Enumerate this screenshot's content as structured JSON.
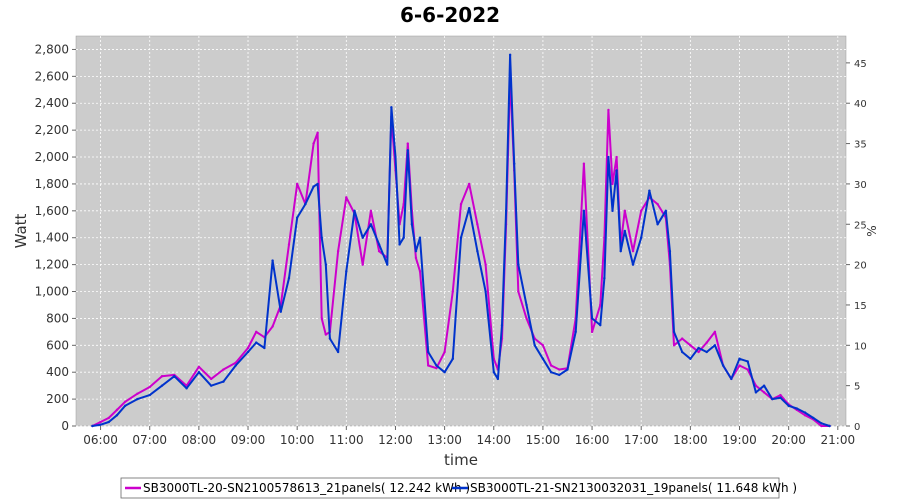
{
  "chart_data": {
    "type": "line",
    "title": "6-6-2022",
    "xlabel": "time",
    "ylabel": "Watt",
    "y2label": "%",
    "ylim": [
      0,
      2900
    ],
    "y2lim": [
      0,
      48.33
    ],
    "xlim": [
      "05:30",
      "21:10"
    ],
    "x_ticks": [
      "06:00",
      "07:00",
      "08:00",
      "09:00",
      "10:00",
      "11:00",
      "12:00",
      "13:00",
      "14:00",
      "15:00",
      "16:00",
      "17:00",
      "18:00",
      "19:00",
      "20:00",
      "21:00"
    ],
    "y_ticks": [
      "0",
      "200",
      "400",
      "600",
      "800",
      "1,000",
      "1,200",
      "1,400",
      "1,600",
      "1,800",
      "2,000",
      "2,200",
      "2,400",
      "2,600",
      "2,800"
    ],
    "y2_ticks": [
      "0",
      "5",
      "10",
      "15",
      "20",
      "25",
      "30",
      "35",
      "40",
      "45"
    ],
    "grid": true,
    "legend_position": "bottom",
    "series": [
      {
        "name": "SB3000TL-20-SN2100578613_21panels( 12.242 kWh )",
        "color": "#cc00cc",
        "x": [
          "05:50",
          "06:00",
          "06:10",
          "06:20",
          "06:30",
          "06:45",
          "07:00",
          "07:15",
          "07:30",
          "07:45",
          "08:00",
          "08:15",
          "08:30",
          "08:45",
          "09:00",
          "09:10",
          "09:20",
          "09:30",
          "09:40",
          "09:50",
          "10:00",
          "10:10",
          "10:20",
          "10:25",
          "10:30",
          "10:35",
          "10:40",
          "10:50",
          "11:00",
          "11:10",
          "11:20",
          "11:30",
          "11:40",
          "11:50",
          "11:55",
          "12:00",
          "12:05",
          "12:10",
          "12:15",
          "12:20",
          "12:25",
          "12:30",
          "12:40",
          "12:50",
          "13:00",
          "13:10",
          "13:20",
          "13:30",
          "13:40",
          "13:50",
          "14:00",
          "14:05",
          "14:10",
          "14:15",
          "14:20",
          "14:25",
          "14:30",
          "14:40",
          "14:50",
          "15:00",
          "15:10",
          "15:20",
          "15:30",
          "15:40",
          "15:50",
          "16:00",
          "16:10",
          "16:15",
          "16:20",
          "16:25",
          "16:30",
          "16:35",
          "16:40",
          "16:50",
          "17:00",
          "17:10",
          "17:20",
          "17:30",
          "17:35",
          "17:40",
          "17:50",
          "18:00",
          "18:10",
          "18:20",
          "18:30",
          "18:40",
          "18:50",
          "19:00",
          "19:10",
          "19:20",
          "19:30",
          "19:40",
          "19:50",
          "20:00",
          "20:10",
          "20:20",
          "20:30",
          "20:40",
          "20:50"
        ],
        "values": [
          0,
          30,
          60,
          120,
          180,
          240,
          290,
          370,
          380,
          300,
          440,
          350,
          420,
          470,
          580,
          700,
          660,
          740,
          900,
          1350,
          1800,
          1650,
          2100,
          2180,
          800,
          680,
          700,
          1300,
          1700,
          1580,
          1200,
          1600,
          1300,
          1250,
          2300,
          1900,
          1500,
          1650,
          2100,
          1600,
          1250,
          1150,
          450,
          430,
          550,
          1000,
          1650,
          1800,
          1500,
          1200,
          500,
          420,
          650,
          1500,
          2600,
          1900,
          1000,
          800,
          650,
          600,
          450,
          420,
          430,
          800,
          1950,
          700,
          900,
          1400,
          2350,
          1800,
          2000,
          1350,
          1600,
          1300,
          1600,
          1700,
          1650,
          1550,
          1200,
          600,
          650,
          600,
          550,
          620,
          700,
          450,
          350,
          450,
          420,
          300,
          250,
          200,
          230,
          160,
          120,
          80,
          50,
          0,
          0
        ]
      },
      {
        "name": "SB3000TL-21-SN2130032031_19panels( 11.648 kWh )",
        "color": "#0033cc",
        "x": [
          "05:50",
          "06:00",
          "06:10",
          "06:20",
          "06:30",
          "06:45",
          "07:00",
          "07:15",
          "07:30",
          "07:45",
          "08:00",
          "08:15",
          "08:30",
          "08:45",
          "09:00",
          "09:10",
          "09:20",
          "09:30",
          "09:40",
          "09:50",
          "10:00",
          "10:10",
          "10:20",
          "10:25",
          "10:30",
          "10:35",
          "10:40",
          "10:50",
          "11:00",
          "11:10",
          "11:20",
          "11:30",
          "11:40",
          "11:50",
          "11:55",
          "12:00",
          "12:05",
          "12:10",
          "12:15",
          "12:20",
          "12:25",
          "12:30",
          "12:40",
          "12:50",
          "13:00",
          "13:10",
          "13:20",
          "13:30",
          "13:40",
          "13:50",
          "14:00",
          "14:05",
          "14:10",
          "14:15",
          "14:20",
          "14:25",
          "14:30",
          "14:40",
          "14:50",
          "15:00",
          "15:10",
          "15:20",
          "15:30",
          "15:40",
          "15:50",
          "16:00",
          "16:10",
          "16:15",
          "16:20",
          "16:25",
          "16:30",
          "16:35",
          "16:40",
          "16:50",
          "17:00",
          "17:10",
          "17:20",
          "17:30",
          "17:35",
          "17:40",
          "17:50",
          "18:00",
          "18:10",
          "18:20",
          "18:30",
          "18:40",
          "18:50",
          "19:00",
          "19:10",
          "19:20",
          "19:30",
          "19:40",
          "19:50",
          "20:00",
          "20:10",
          "20:20",
          "20:30",
          "20:40",
          "20:50"
        ],
        "values": [
          0,
          10,
          30,
          80,
          150,
          200,
          230,
          300,
          370,
          280,
          400,
          300,
          330,
          450,
          550,
          620,
          580,
          1230,
          850,
          1100,
          1550,
          1650,
          1780,
          1800,
          1400,
          1200,
          650,
          550,
          1150,
          1600,
          1400,
          1500,
          1350,
          1200,
          2370,
          2000,
          1350,
          1400,
          2050,
          1500,
          1300,
          1400,
          550,
          450,
          400,
          500,
          1400,
          1620,
          1300,
          1000,
          400,
          350,
          750,
          1600,
          2760,
          1950,
          1200,
          900,
          600,
          500,
          400,
          380,
          420,
          700,
          1600,
          800,
          750,
          1100,
          2000,
          1600,
          1900,
          1300,
          1450,
          1200,
          1400,
          1750,
          1500,
          1600,
          1300,
          700,
          550,
          500,
          580,
          550,
          600,
          450,
          350,
          500,
          480,
          250,
          300,
          200,
          210,
          150,
          130,
          100,
          60,
          20,
          0
        ]
      }
    ]
  }
}
